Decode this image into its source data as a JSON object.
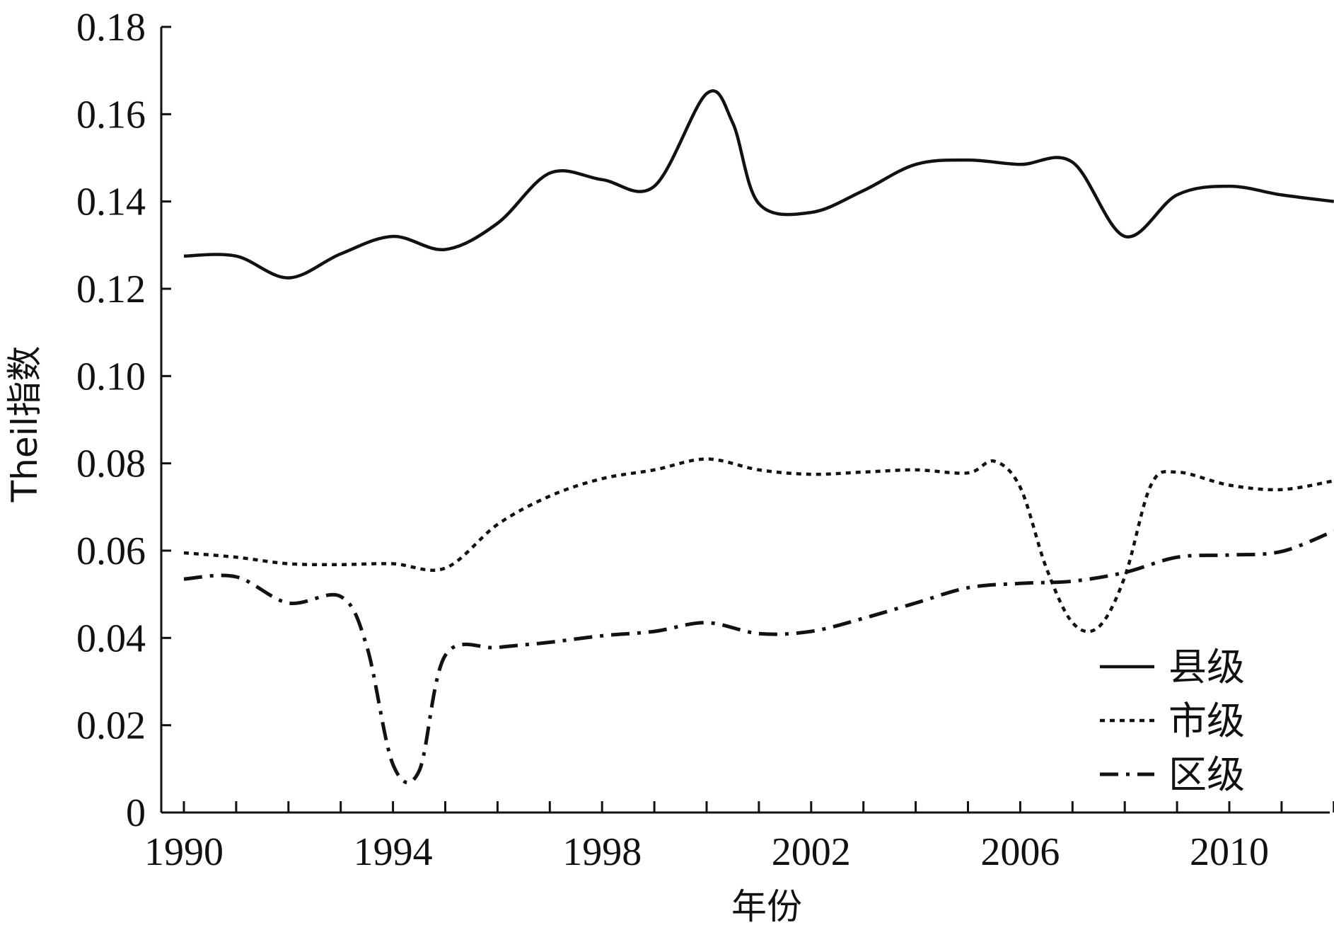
{
  "chart_data": {
    "type": "line",
    "xlabel": "年份",
    "ylabel": "Theil指数",
    "xlim": [
      1990,
      2012.5
    ],
    "ylim": [
      0,
      0.18
    ],
    "x_ticks": [
      1990,
      1994,
      1998,
      2002,
      2006,
      2010
    ],
    "y_ticks": [
      "0",
      "0.02",
      "0.04",
      "0.06",
      "0.08",
      "0.10",
      "0.12",
      "0.14",
      "0.16",
      "0.18"
    ],
    "legend_position": "bottom-right",
    "grid": false,
    "series": [
      {
        "name": "县级",
        "style": "solid",
        "x": [
          1990.0,
          1991.0,
          1992.0,
          1993.0,
          1994.0,
          1995.0,
          1996.0,
          1997.0,
          1998.0,
          1999.0,
          2000.0,
          2000.5,
          2001.0,
          2002.0,
          2003.0,
          2004.0,
          2005.0,
          2006.0,
          2007.0,
          2008.0,
          2009.0,
          2010.0,
          2011.0,
          2012.0
        ],
        "y": [
          0.1275,
          0.1275,
          0.1225,
          0.128,
          0.132,
          0.129,
          0.135,
          0.1465,
          0.145,
          0.1435,
          0.1647,
          0.158,
          0.1395,
          0.1375,
          0.1425,
          0.1485,
          0.1495,
          0.1485,
          0.149,
          0.132,
          0.1415,
          0.1435,
          0.1415,
          0.14
        ]
      },
      {
        "name": "市级",
        "style": "dotted",
        "x": [
          1990.0,
          1991.0,
          1992.0,
          1993.0,
          1994.0,
          1995.0,
          1996.0,
          1997.0,
          1998.0,
          1999.0,
          2000.0,
          2001.0,
          2002.0,
          2003.0,
          2004.0,
          2005.0,
          2005.5,
          2006.0,
          2006.5,
          2007.0,
          2007.5,
          2008.0,
          2008.5,
          2009.0,
          2010.0,
          2011.0,
          2012.0
        ],
        "y": [
          0.0595,
          0.0585,
          0.057,
          0.0568,
          0.057,
          0.056,
          0.066,
          0.0725,
          0.0765,
          0.0785,
          0.081,
          0.0785,
          0.0775,
          0.078,
          0.0785,
          0.0778,
          0.0805,
          0.0745,
          0.056,
          0.0435,
          0.0425,
          0.054,
          0.075,
          0.078,
          0.075,
          0.074,
          0.076
        ]
      },
      {
        "name": "区级",
        "style": "dashdot",
        "x": [
          1990.0,
          1991.0,
          1992.0,
          1993.0,
          1993.5,
          1994.0,
          1994.5,
          1995.0,
          1996.0,
          1997.0,
          1998.0,
          1999.0,
          2000.0,
          2001.0,
          2002.0,
          2003.0,
          2004.0,
          2005.0,
          2006.0,
          2007.0,
          2008.0,
          2009.0,
          2010.0,
          2011.0,
          2012.0
        ],
        "y": [
          0.0535,
          0.054,
          0.048,
          0.0495,
          0.038,
          0.011,
          0.0095,
          0.036,
          0.0378,
          0.039,
          0.0405,
          0.0415,
          0.0435,
          0.041,
          0.0415,
          0.0445,
          0.048,
          0.0515,
          0.0525,
          0.053,
          0.055,
          0.0585,
          0.059,
          0.0598,
          0.0645
        ]
      }
    ]
  }
}
